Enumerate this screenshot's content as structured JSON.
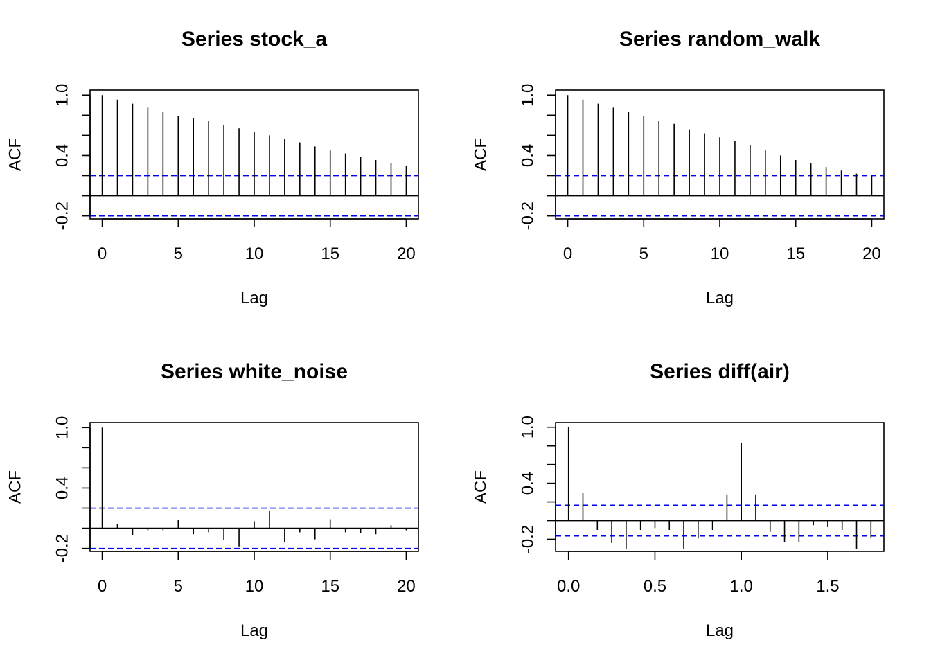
{
  "colors": {
    "confidence_line": "#0000ee",
    "bar": "#000000",
    "frame": "#000000"
  },
  "chart_data": [
    {
      "type": "bar",
      "title": "Series  stock_a",
      "xlabel": "Lag",
      "ylabel": "ACF",
      "xlim": [
        -0.8,
        20.8
      ],
      "ylim": [
        -0.23,
        1.05
      ],
      "xticks": [
        0,
        5,
        10,
        15,
        20
      ],
      "xtick_labels": [
        "0",
        "5",
        "10",
        "15",
        "20"
      ],
      "yticks": [
        -0.2,
        0.0,
        0.2,
        0.4,
        0.6,
        0.8,
        1.0
      ],
      "ytick_labels": [
        "-0.2",
        "",
        "",
        "0.4",
        "",
        "",
        "1.0"
      ],
      "conf_bounds": [
        0.2,
        -0.2
      ],
      "x": [
        0,
        1,
        2,
        3,
        4,
        5,
        6,
        7,
        8,
        9,
        10,
        11,
        12,
        13,
        14,
        15,
        16,
        17,
        18,
        19,
        20
      ],
      "values": [
        1.0,
        0.955,
        0.915,
        0.875,
        0.835,
        0.795,
        0.77,
        0.74,
        0.705,
        0.67,
        0.635,
        0.6,
        0.565,
        0.53,
        0.49,
        0.45,
        0.42,
        0.385,
        0.355,
        0.325,
        0.3
      ]
    },
    {
      "type": "bar",
      "title": "Series  random_walk",
      "xlabel": "Lag",
      "ylabel": "ACF",
      "xlim": [
        -0.8,
        20.8
      ],
      "ylim": [
        -0.23,
        1.05
      ],
      "xticks": [
        0,
        5,
        10,
        15,
        20
      ],
      "xtick_labels": [
        "0",
        "5",
        "10",
        "15",
        "20"
      ],
      "yticks": [
        -0.2,
        0.0,
        0.2,
        0.4,
        0.6,
        0.8,
        1.0
      ],
      "ytick_labels": [
        "-0.2",
        "",
        "",
        "0.4",
        "",
        "",
        "1.0"
      ],
      "conf_bounds": [
        0.2,
        -0.2
      ],
      "x": [
        0,
        1,
        2,
        3,
        4,
        5,
        6,
        7,
        8,
        9,
        10,
        11,
        12,
        13,
        14,
        15,
        16,
        17,
        18,
        19,
        20
      ],
      "values": [
        1.0,
        0.955,
        0.915,
        0.875,
        0.835,
        0.795,
        0.745,
        0.715,
        0.66,
        0.62,
        0.58,
        0.545,
        0.5,
        0.45,
        0.4,
        0.355,
        0.32,
        0.285,
        0.25,
        0.22,
        0.2
      ]
    },
    {
      "type": "bar",
      "title": "Series  white_noise",
      "xlabel": "Lag",
      "ylabel": "ACF",
      "xlim": [
        -0.8,
        20.8
      ],
      "ylim": [
        -0.23,
        1.05
      ],
      "xticks": [
        0,
        5,
        10,
        15,
        20
      ],
      "xtick_labels": [
        "0",
        "5",
        "10",
        "15",
        "20"
      ],
      "yticks": [
        -0.2,
        0.0,
        0.2,
        0.4,
        0.6,
        0.8,
        1.0
      ],
      "ytick_labels": [
        "-0.2",
        "",
        "",
        "0.4",
        "",
        "",
        "1.0"
      ],
      "conf_bounds": [
        0.2,
        -0.2
      ],
      "x": [
        0,
        1,
        2,
        3,
        4,
        5,
        6,
        7,
        8,
        9,
        10,
        11,
        12,
        13,
        14,
        15,
        16,
        17,
        18,
        19,
        20
      ],
      "values": [
        1.0,
        0.04,
        -0.07,
        -0.02,
        -0.02,
        0.08,
        -0.06,
        -0.04,
        -0.12,
        -0.18,
        0.07,
        0.17,
        -0.14,
        -0.04,
        -0.11,
        0.09,
        -0.04,
        -0.05,
        -0.06,
        0.03,
        -0.02
      ]
    },
    {
      "type": "bar",
      "title": "Series  diff(air)",
      "xlabel": "Lag",
      "ylabel": "ACF",
      "xlim": [
        -0.075,
        1.825
      ],
      "ylim": [
        -0.33,
        1.05
      ],
      "xticks": [
        0.0,
        0.5,
        1.0,
        1.5
      ],
      "xtick_labels": [
        "0.0",
        "0.5",
        "1.0",
        "1.5"
      ],
      "yticks": [
        -0.2,
        0.0,
        0.2,
        0.4,
        0.6,
        0.8,
        1.0
      ],
      "ytick_labels": [
        "-0.2",
        "",
        "",
        "0.4",
        "",
        "",
        "1.0"
      ],
      "conf_bounds": [
        0.165,
        -0.165
      ],
      "x": [
        0.0,
        0.0833,
        0.1667,
        0.25,
        0.3333,
        0.4167,
        0.5,
        0.5833,
        0.6667,
        0.75,
        0.8333,
        0.9167,
        1.0,
        1.0833,
        1.1667,
        1.25,
        1.3333,
        1.4167,
        1.5,
        1.5833,
        1.6667,
        1.75
      ],
      "values": [
        1.0,
        0.3,
        -0.1,
        -0.24,
        -0.3,
        -0.1,
        -0.08,
        -0.1,
        -0.3,
        -0.19,
        -0.1,
        0.28,
        0.83,
        0.28,
        -0.12,
        -0.23,
        -0.23,
        -0.05,
        -0.07,
        -0.1,
        -0.3,
        -0.18
      ]
    }
  ]
}
